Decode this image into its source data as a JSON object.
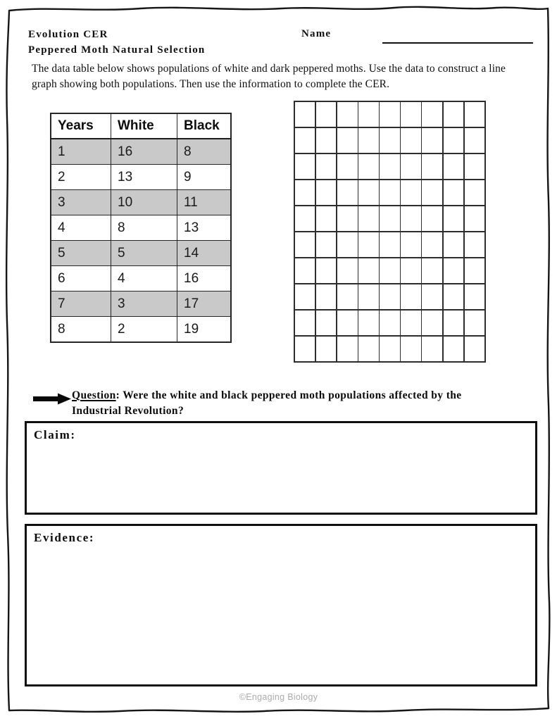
{
  "header": {
    "title": "Evolution CER",
    "subtitle": "Peppered Moth Natural Selection",
    "name_label": "Name"
  },
  "instructions": "The data table below shows populations of white and dark peppered moths. Use the data to construct a line graph showing both populations. Then use the information to complete the CER.",
  "data_table": {
    "headers": [
      "Years",
      "White",
      "Black"
    ],
    "rows": [
      [
        "1",
        "16",
        "8"
      ],
      [
        "2",
        "13",
        "9"
      ],
      [
        "3",
        "10",
        "11"
      ],
      [
        "4",
        "8",
        "13"
      ],
      [
        "5",
        "5",
        "14"
      ],
      [
        "6",
        "4",
        "16"
      ],
      [
        "7",
        "3",
        "17"
      ],
      [
        "8",
        "2",
        "19"
      ]
    ]
  },
  "graph_grid": {
    "columns": 9,
    "rows": 10
  },
  "question": {
    "label": "Question",
    "text": ": Were the white and black peppered moth populations affected by the Industrial Revolution?"
  },
  "cer": {
    "claim_label": "Claim:",
    "evidence_label": "Evidence:"
  },
  "footer": {
    "credit": "©Engaging Biology"
  },
  "colors": {
    "shaded_row": "#c9c9c9",
    "line": "#161616",
    "footer_text": "#ababab"
  }
}
